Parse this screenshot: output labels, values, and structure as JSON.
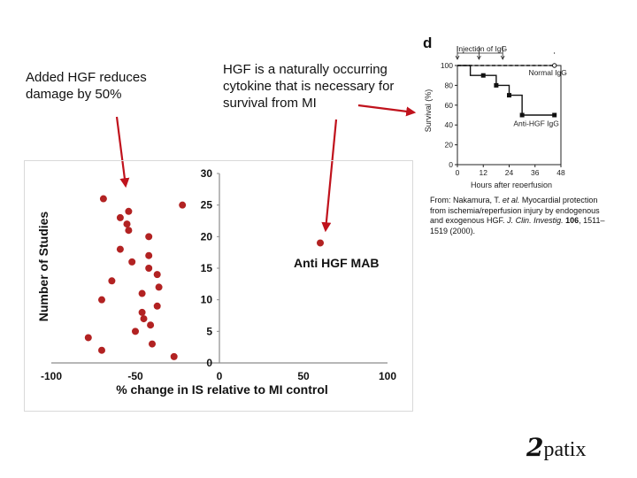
{
  "callouts": {
    "added_hgf": "Added HGF reduces damage by 50%",
    "naturally_occurring": "HGF is a naturally occurring cytokine that is necessary for survival from MI"
  },
  "chart_data": [
    {
      "type": "scatter",
      "title": "",
      "xlabel": "% change in IS relative to MI control",
      "ylabel": "Number of Studies",
      "xlim": [
        -100,
        100
      ],
      "ylim": [
        0,
        30
      ],
      "xticks": [
        -100,
        -50,
        0,
        50,
        100
      ],
      "yticks": [
        0,
        5,
        10,
        15,
        20,
        25,
        30
      ],
      "annotation": "Anti HGF MAB",
      "marker_color": "#b22222",
      "points": [
        {
          "x": -69,
          "y": 26
        },
        {
          "x": -22,
          "y": 25
        },
        {
          "x": -54,
          "y": 24
        },
        {
          "x": -59,
          "y": 23
        },
        {
          "x": -55,
          "y": 22
        },
        {
          "x": -54,
          "y": 21
        },
        {
          "x": -42,
          "y": 20
        },
        {
          "x": 60,
          "y": 19
        },
        {
          "x": -59,
          "y": 18
        },
        {
          "x": -42,
          "y": 17
        },
        {
          "x": -52,
          "y": 16
        },
        {
          "x": -42,
          "y": 15
        },
        {
          "x": -37,
          "y": 14
        },
        {
          "x": -64,
          "y": 13
        },
        {
          "x": -36,
          "y": 12
        },
        {
          "x": -46,
          "y": 11
        },
        {
          "x": -70,
          "y": 10
        },
        {
          "x": -37,
          "y": 9
        },
        {
          "x": -46,
          "y": 8
        },
        {
          "x": -45,
          "y": 7
        },
        {
          "x": -41,
          "y": 6
        },
        {
          "x": -50,
          "y": 5
        },
        {
          "x": -78,
          "y": 4
        },
        {
          "x": -40,
          "y": 3
        },
        {
          "x": -70,
          "y": 2
        },
        {
          "x": -27,
          "y": 1
        }
      ]
    },
    {
      "type": "line",
      "panel_label": "d",
      "title": "",
      "xlabel": "Hours after reperfusion",
      "ylabel": "Survival (%)",
      "xlim": [
        0,
        48
      ],
      "ylim": [
        0,
        100
      ],
      "xticks": [
        0,
        12,
        24,
        36,
        48
      ],
      "yticks": [
        0,
        20,
        40,
        60,
        80,
        100
      ],
      "injection_label": "Injection of IgG",
      "injection_times": [
        0,
        10,
        21
      ],
      "series": [
        {
          "name": "Normal IgG",
          "style": "dashed",
          "x": [
            0,
            45
          ],
          "y": [
            100,
            100
          ],
          "marker": "open-circle-end"
        },
        {
          "name": "Anti-HGF IgG",
          "style": "step",
          "x": [
            0,
            6,
            12,
            18,
            24,
            30,
            45
          ],
          "y": [
            100,
            90,
            90,
            80,
            70,
            50,
            50
          ],
          "marker": "square"
        }
      ]
    }
  ],
  "citation": {
    "prefix": "From: Nakamura, T. ",
    "etal": "et al.",
    "body": " Myocardial protection from ischemia/reperfusion injury by endogenous and exogenous HGF. ",
    "journal": "J. Clin. Investig.",
    "volume": "106",
    "pages": ", 1511–1519 (2000)."
  },
  "logo": {
    "number": "2",
    "text": "patix"
  }
}
